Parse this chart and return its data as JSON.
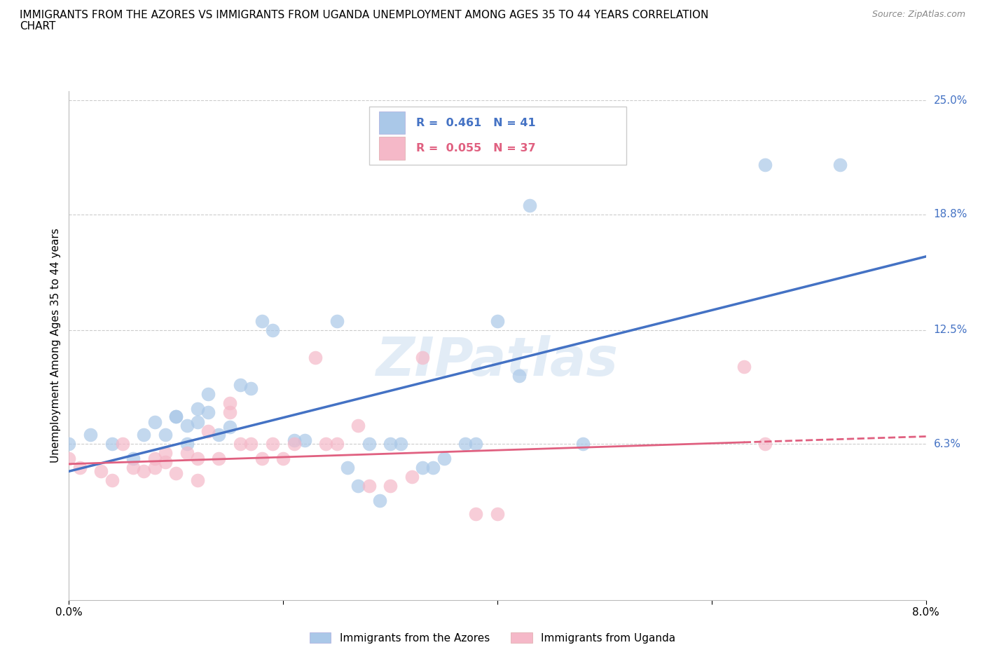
{
  "title_line1": "IMMIGRANTS FROM THE AZORES VS IMMIGRANTS FROM UGANDA UNEMPLOYMENT AMONG AGES 35 TO 44 YEARS CORRELATION",
  "title_line2": "CHART",
  "source": "Source: ZipAtlas.com",
  "ylabel": "Unemployment Among Ages 35 to 44 years",
  "xlim": [
    0.0,
    0.08
  ],
  "ylim": [
    -0.022,
    0.255
  ],
  "xticks": [
    0.0,
    0.02,
    0.04,
    0.06,
    0.08
  ],
  "xtick_labels": [
    "0.0%",
    "",
    "",
    "",
    "8.0%"
  ],
  "ytick_labels_right": [
    "25.0%",
    "18.8%",
    "12.5%",
    "6.3%"
  ],
  "yticks_right": [
    0.25,
    0.188,
    0.125,
    0.063
  ],
  "grid_yticks": [
    0.063,
    0.125,
    0.188,
    0.25
  ],
  "grid_color": "#cccccc",
  "azores_color": "#aac8e8",
  "uganda_color": "#f5b8c8",
  "azores_line_color": "#4472c4",
  "uganda_line_color": "#e06080",
  "azores_R": "0.461",
  "azores_N": "41",
  "uganda_R": "0.055",
  "uganda_N": "37",
  "watermark": "ZIPatlas",
  "legend_label_azores": "Immigrants from the Azores",
  "legend_label_uganda": "Immigrants from Uganda",
  "azores_x": [
    0.0,
    0.002,
    0.004,
    0.006,
    0.007,
    0.008,
    0.009,
    0.01,
    0.01,
    0.011,
    0.011,
    0.012,
    0.012,
    0.013,
    0.013,
    0.014,
    0.015,
    0.016,
    0.017,
    0.018,
    0.019,
    0.021,
    0.022,
    0.025,
    0.026,
    0.027,
    0.028,
    0.029,
    0.03,
    0.031,
    0.033,
    0.034,
    0.035,
    0.037,
    0.038,
    0.04,
    0.042,
    0.043,
    0.048,
    0.065,
    0.072
  ],
  "azores_y": [
    0.063,
    0.068,
    0.063,
    0.055,
    0.068,
    0.075,
    0.068,
    0.078,
    0.078,
    0.073,
    0.063,
    0.082,
    0.075,
    0.08,
    0.09,
    0.068,
    0.072,
    0.095,
    0.093,
    0.13,
    0.125,
    0.065,
    0.065,
    0.13,
    0.05,
    0.04,
    0.063,
    0.032,
    0.063,
    0.063,
    0.05,
    0.05,
    0.055,
    0.063,
    0.063,
    0.13,
    0.1,
    0.193,
    0.063,
    0.215,
    0.215
  ],
  "uganda_x": [
    0.0,
    0.001,
    0.003,
    0.004,
    0.005,
    0.006,
    0.007,
    0.008,
    0.008,
    0.009,
    0.009,
    0.01,
    0.011,
    0.012,
    0.012,
    0.013,
    0.014,
    0.015,
    0.015,
    0.016,
    0.017,
    0.018,
    0.019,
    0.02,
    0.021,
    0.023,
    0.024,
    0.025,
    0.027,
    0.028,
    0.03,
    0.032,
    0.033,
    0.038,
    0.04,
    0.063,
    0.065
  ],
  "uganda_y": [
    0.055,
    0.05,
    0.048,
    0.043,
    0.063,
    0.05,
    0.048,
    0.05,
    0.055,
    0.058,
    0.053,
    0.047,
    0.058,
    0.055,
    0.043,
    0.07,
    0.055,
    0.085,
    0.08,
    0.063,
    0.063,
    0.055,
    0.063,
    0.055,
    0.063,
    0.11,
    0.063,
    0.063,
    0.073,
    0.04,
    0.04,
    0.045,
    0.11,
    0.025,
    0.025,
    0.105,
    0.063
  ]
}
